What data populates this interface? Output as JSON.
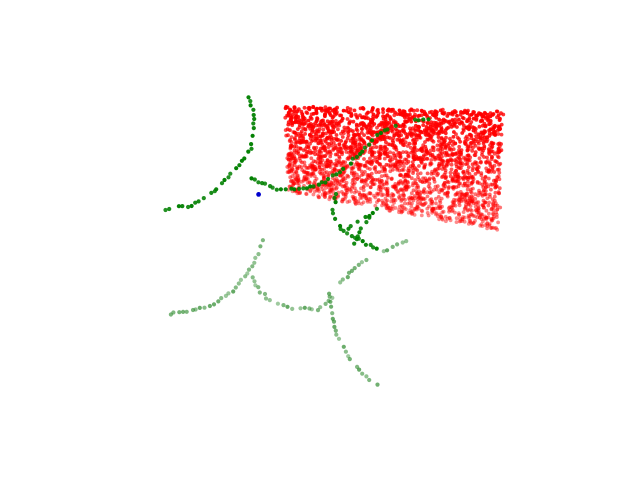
{
  "chart_data": {
    "type": "scatter",
    "title": "",
    "xlabel": "",
    "ylabel": "",
    "zlabel": "",
    "grid": false,
    "axes_visible": false,
    "legend": "none",
    "projection": "3d",
    "series": [
      {
        "color": "#ff0000",
        "shape": "planar_patch",
        "corners_xy": [
          [
            0.35,
            0.1
          ],
          [
            0.94,
            0.12
          ],
          [
            0.93,
            0.58
          ],
          [
            0.36,
            0.43
          ]
        ],
        "approx_points": 2600
      },
      {
        "color": "#008000",
        "shape": "branching_curves",
        "branches": [
          [
            [
              0.03,
              0.5
            ],
            [
              0.1,
              0.48
            ],
            [
              0.16,
              0.43
            ],
            [
              0.22,
              0.34
            ],
            [
              0.26,
              0.26
            ],
            [
              0.27,
              0.15
            ],
            [
              0.25,
              0.05
            ]
          ],
          [
            [
              0.26,
              0.38
            ],
            [
              0.33,
              0.42
            ],
            [
              0.4,
              0.42
            ],
            [
              0.46,
              0.39
            ],
            [
              0.52,
              0.33
            ],
            [
              0.57,
              0.26
            ],
            [
              0.61,
              0.2
            ],
            [
              0.68,
              0.16
            ],
            [
              0.74,
              0.15
            ]
          ],
          [
            [
              0.49,
              0.44
            ],
            [
              0.48,
              0.5
            ],
            [
              0.49,
              0.55
            ],
            [
              0.52,
              0.59
            ],
            [
              0.57,
              0.63
            ],
            [
              0.6,
              0.65
            ]
          ],
          [
            [
              0.52,
              0.57
            ],
            [
              0.56,
              0.54
            ],
            [
              0.6,
              0.5
            ]
          ],
          [
            [
              0.54,
              0.63
            ],
            [
              0.56,
              0.57
            ],
            [
              0.58,
              0.53
            ]
          ]
        ]
      },
      {
        "color": "#2e8b2e",
        "shape": "branching_curves",
        "faded": true,
        "branches": [
          [
            [
              0.03,
              0.9
            ],
            [
              0.1,
              0.89
            ],
            [
              0.16,
              0.86
            ],
            [
              0.22,
              0.8
            ],
            [
              0.27,
              0.7
            ],
            [
              0.29,
              0.62
            ]
          ],
          [
            [
              0.26,
              0.76
            ],
            [
              0.3,
              0.84
            ],
            [
              0.37,
              0.88
            ],
            [
              0.44,
              0.88
            ],
            [
              0.48,
              0.84
            ]
          ],
          [
            [
              0.47,
              0.82
            ],
            [
              0.48,
              0.9
            ],
            [
              0.49,
              0.98
            ],
            [
              0.52,
              1.06
            ],
            [
              0.56,
              1.13
            ],
            [
              0.6,
              1.17
            ]
          ],
          [
            [
              0.5,
              0.78
            ],
            [
              0.54,
              0.72
            ],
            [
              0.58,
              0.68
            ],
            [
              0.63,
              0.65
            ],
            [
              0.68,
              0.62
            ]
          ]
        ]
      },
      {
        "color": "#0000cd",
        "shape": "point",
        "position_xy": [
          0.28,
          0.44
        ]
      }
    ]
  }
}
